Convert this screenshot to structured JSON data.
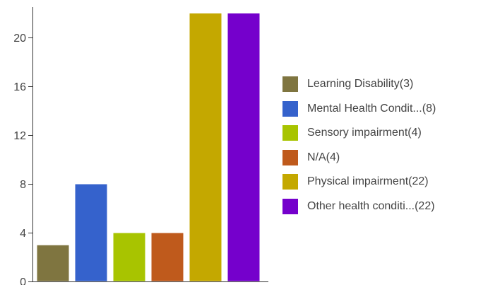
{
  "chart_data": {
    "type": "bar",
    "categories": [
      "Learning Disability(3)",
      "Mental Health Condit...(8)",
      "Sensory impairment(4)",
      "N/A(4)",
      "Physical impairment(22)",
      "Other health conditi...(22)"
    ],
    "values": [
      3,
      8,
      4,
      4,
      22,
      22
    ],
    "colors": [
      "#7f7540",
      "#3562cc",
      "#a8c400",
      "#bf5a1c",
      "#c4a800",
      "#7500cc"
    ],
    "yticks": [
      0,
      4,
      8,
      12,
      16,
      20
    ],
    "ytick_labels": [
      "0",
      "4",
      "8",
      "12",
      "16",
      "20"
    ],
    "ylim": [
      0,
      22
    ],
    "grid": false,
    "legend_position": "right",
    "title": "",
    "xlabel": "",
    "ylabel": ""
  }
}
